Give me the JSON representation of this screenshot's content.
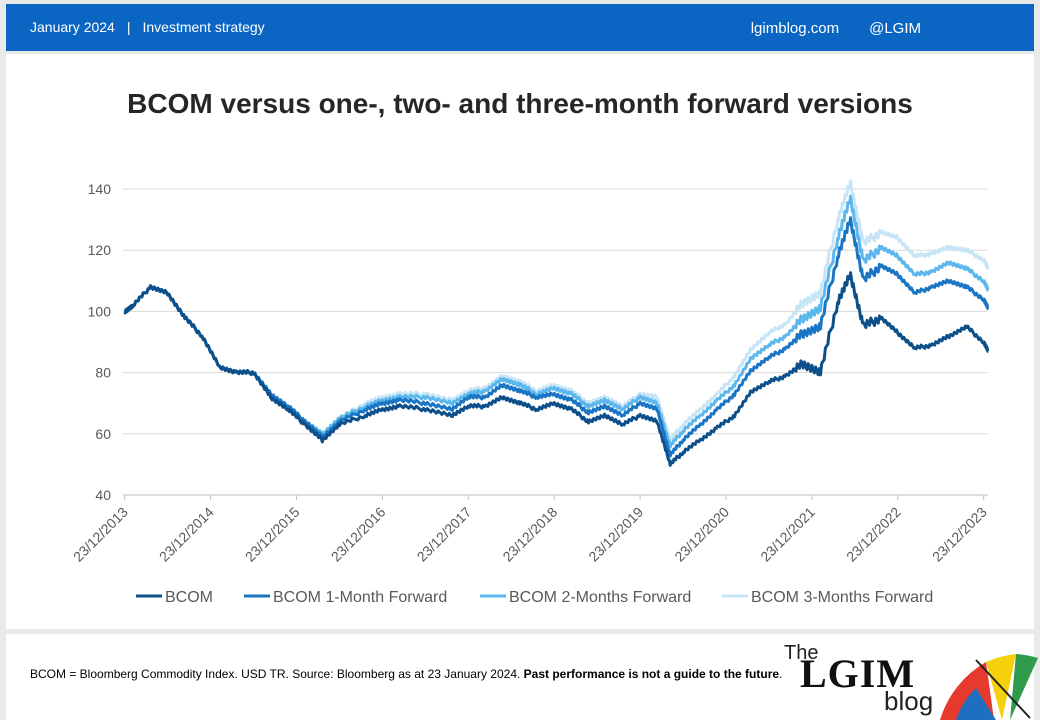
{
  "header": {
    "date": "January 2024",
    "separator": "|",
    "section": "Investment strategy",
    "site": "lgimblog.com",
    "handle": "@LGIM"
  },
  "title": "BCOM versus one-, two- and three-month forward versions",
  "footnote": {
    "text": "BCOM = Bloomberg Commodity Index. USD TR. Source: Bloomberg as at 23 January 2024. ",
    "bold": "Past performance is not a guide to the future",
    "end": "."
  },
  "logo": {
    "the": "The",
    "lgim": "LGIM",
    "blog": "blog"
  },
  "colors": {
    "header": "#0b66c3"
  },
  "chart_data": {
    "type": "line",
    "ylim": [
      40,
      140
    ],
    "yticks": [
      40,
      60,
      80,
      100,
      120,
      140
    ],
    "xlim": [
      2013.98,
      2024.05
    ],
    "xtick_labels": [
      "23/12/2013",
      "23/12/2014",
      "23/12/2015",
      "23/12/2016",
      "23/12/2017",
      "23/12/2018",
      "23/12/2019",
      "23/12/2020",
      "23/12/2021",
      "23/12/2022",
      "23/12/2023"
    ],
    "grid": "horizontal",
    "legend": "bottom",
    "x": [
      2014.0,
      2014.1,
      2014.3,
      2014.5,
      2014.7,
      2014.9,
      2015.1,
      2015.3,
      2015.5,
      2015.7,
      2015.9,
      2016.1,
      2016.3,
      2016.5,
      2016.8,
      2017.0,
      2017.2,
      2017.5,
      2017.8,
      2018.0,
      2018.2,
      2018.4,
      2018.6,
      2018.8,
      2019.0,
      2019.2,
      2019.4,
      2019.6,
      2019.8,
      2020.0,
      2020.2,
      2020.35,
      2020.5,
      2020.7,
      2020.9,
      2021.1,
      2021.3,
      2021.5,
      2021.7,
      2021.9,
      2022.1,
      2022.3,
      2022.45,
      2022.6,
      2022.8,
      2023.0,
      2023.2,
      2023.4,
      2023.6,
      2023.8,
      2024.0,
      2024.05
    ],
    "series": [
      {
        "name": "BCOM",
        "color": "#0c4f8a",
        "width": 3,
        "values": [
          100,
          102,
          108,
          106,
          98,
          92,
          82,
          80,
          80,
          72,
          68,
          63,
          58,
          63,
          66,
          68,
          69,
          68,
          66,
          69,
          69,
          72,
          70,
          68,
          70,
          68,
          64,
          66,
          63,
          66,
          64,
          50,
          54,
          58,
          62,
          66,
          74,
          77,
          79,
          83,
          80,
          103,
          112,
          95,
          98,
          93,
          88,
          89,
          92,
          95,
          90,
          87
        ]
      },
      {
        "name": "BCOM 1-Month Forward",
        "color": "#1a75c4",
        "width": 3,
        "values": [
          100,
          102,
          108,
          106,
          98,
          92,
          82,
          80,
          80,
          73,
          69,
          64,
          59,
          64,
          68,
          70,
          71,
          70,
          68,
          72,
          72,
          76,
          74,
          72,
          73,
          71,
          67,
          69,
          66,
          70,
          68,
          53,
          58,
          63,
          68,
          73,
          81,
          85,
          88,
          93,
          95,
          118,
          130,
          110,
          115,
          112,
          106,
          108,
          110,
          108,
          104,
          101
        ]
      },
      {
        "name": "BCOM 2-Months Forward",
        "color": "#5cb8ec",
        "width": 3,
        "values": [
          100,
          102,
          108,
          106,
          98,
          92,
          82,
          80,
          80,
          73,
          69,
          64,
          60,
          65,
          69,
          71,
          72,
          72,
          70,
          73,
          74,
          78,
          76,
          73,
          75,
          73,
          69,
          71,
          68,
          72,
          70,
          56,
          61,
          66,
          71,
          76,
          85,
          89,
          92,
          98,
          101,
          124,
          137,
          116,
          121,
          118,
          112,
          113,
          116,
          114,
          110,
          107
        ]
      },
      {
        "name": "BCOM 3-Months Forward",
        "color": "#c7e5f6",
        "width": 3,
        "values": [
          100,
          102,
          108,
          106,
          98,
          92,
          82,
          80,
          80,
          73,
          69,
          64,
          60,
          65,
          70,
          72,
          73,
          73,
          71,
          74,
          75,
          79,
          77,
          74,
          76,
          74,
          70,
          72,
          69,
          73,
          72,
          58,
          63,
          68,
          73,
          79,
          88,
          93,
          96,
          103,
          106,
          130,
          142,
          122,
          126,
          124,
          118,
          119,
          121,
          120,
          117,
          114
        ]
      }
    ]
  }
}
